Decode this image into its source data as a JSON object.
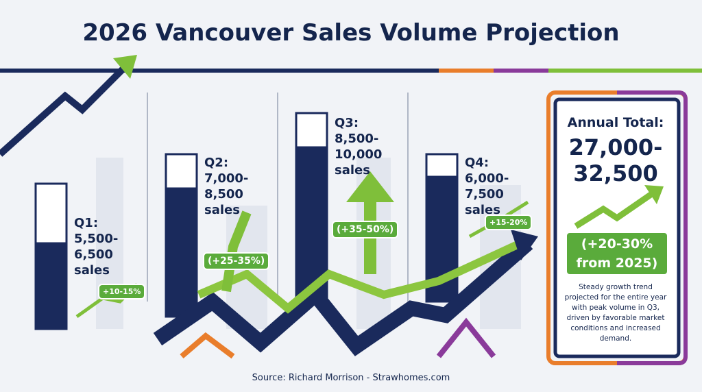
{
  "header": {
    "title": "2026 Vancouver Sales Volume Projection"
  },
  "quarters": [
    {
      "label": "Q1:",
      "lines": [
        "5,500-",
        "6,500",
        "sales"
      ],
      "change": "+10-15%"
    },
    {
      "label": "Q2:",
      "lines": [
        "7,000-",
        "8,500",
        "sales"
      ],
      "change": "(+25-35%)"
    },
    {
      "label": "Q3:",
      "lines": [
        "8,500-",
        "10,000",
        "sales"
      ],
      "change": "(+35-50%)"
    },
    {
      "label": "Q4:",
      "lines": [
        "6,000-",
        "7,500",
        "sales"
      ],
      "change": "+15-20%"
    }
  ],
  "annual": {
    "label": "Annual Total:",
    "lines": [
      "27,000-",
      "32,500"
    ],
    "change": [
      "(+20-30%",
      "from 2025)"
    ],
    "description": "Steady growth trend projected for the entire year with peak volume in Q3, driven by favorable market conditions and increased demand."
  },
  "footer": {
    "source": "Source: Richard Morrison - Strawhomes.com"
  }
}
